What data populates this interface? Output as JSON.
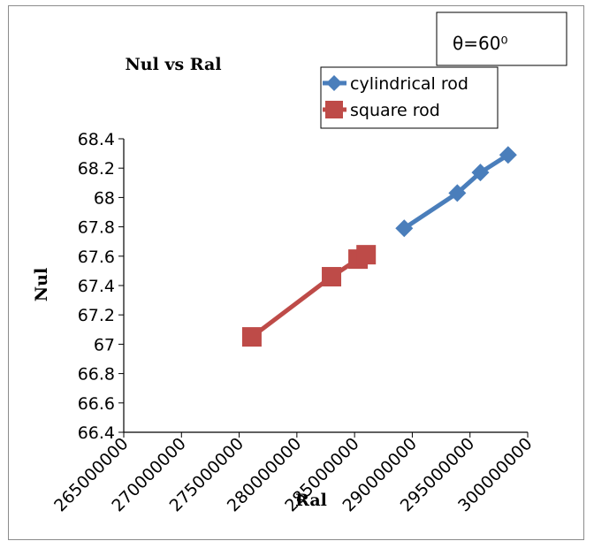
{
  "chart_data": {
    "type": "scatter",
    "title": "Nul vs Ral",
    "xlabel": "Ral",
    "ylabel": "Nul",
    "annotation": "θ=60⁰",
    "xlim": [
      265000000,
      300000000
    ],
    "ylim": [
      66.4,
      68.4
    ],
    "x_ticks": [
      265000000,
      270000000,
      275000000,
      280000000,
      285000000,
      290000000,
      295000000,
      300000000
    ],
    "x_tick_labels": [
      "265000000",
      "270000000",
      "275000000",
      "280000000",
      "285000000",
      "290000000",
      "295000000",
      "300000000"
    ],
    "y_ticks": [
      66.4,
      66.6,
      66.8,
      67,
      67.2,
      67.4,
      67.6,
      67.8,
      68,
      68.2,
      68.4
    ],
    "y_tick_labels": [
      "66.4",
      "66.6",
      "66.8",
      "67",
      "67.2",
      "67.4",
      "67.6",
      "67.8",
      "68",
      "68.2",
      "68.4"
    ],
    "grid": false,
    "legend_position": "top-right",
    "series": [
      {
        "name": "cylindrical rod",
        "color": "#4a7ebb",
        "marker": "diamond",
        "x": [
          289300000,
          293900000,
          295900000,
          298300000
        ],
        "y": [
          67.79,
          68.03,
          68.17,
          68.29
        ]
      },
      {
        "name": "square rod",
        "color": "#be4b48",
        "marker": "square",
        "x": [
          276100000,
          283000000,
          285300000,
          286000000
        ],
        "y": [
          67.05,
          67.46,
          67.58,
          67.61
        ]
      }
    ]
  }
}
